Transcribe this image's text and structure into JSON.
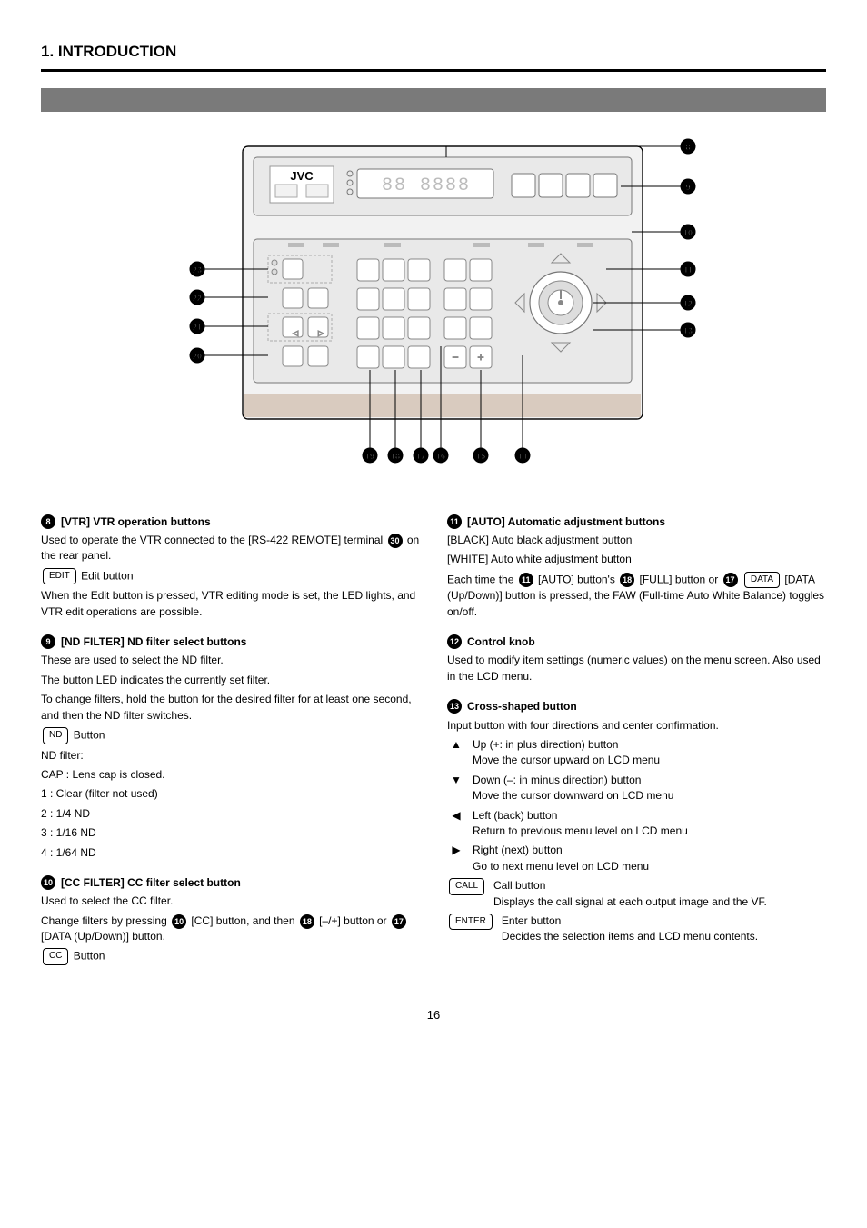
{
  "page": {
    "section": "1. INTRODUCTION",
    "bar_title": "",
    "page_number": "16"
  },
  "diagram": {
    "brand": "JVC",
    "right_callouts": [
      "8",
      "9",
      "10",
      "11",
      "12",
      "13"
    ],
    "left_callouts": [
      "23",
      "22",
      "21",
      "20"
    ],
    "bottom_callouts": [
      "19",
      "18",
      "17",
      "16",
      "15",
      "14"
    ],
    "beige": "#d9cbbf",
    "light": "#f2f2f2",
    "mid": "#cfcfcf",
    "dark": "#8a8a8a",
    "line": "#000"
  },
  "items_left": [
    {
      "num": "8",
      "title": "[VTR] VTR operation buttons",
      "paras": [
        "Used to operate the VTR connected to the [RS-422 REMOTE] terminal ⊕ on the rear panel.",
        "",
        "When the Edit button is pressed, VTR editing mode is set, the LED lights, and VTR edit operations are possible."
      ],
      "btn_after_para": {
        "index": 1,
        "label": "EDIT",
        "text": "Edit button"
      }
    },
    {
      "num": "9",
      "title": "[ND FILTER] ND filter select buttons",
      "paras": [
        "These are used to select the ND filter.",
        "The button LED indicates the currently set filter.",
        "To change filters, hold the button for the desired filter for at least one second, and then the ND filter switches.",
        "",
        "ND filter:",
        "CAP : Lens cap is closed.",
        "1 : Clear (filter not used)",
        "2 : 1/4 ND",
        "3 : 1/16 ND",
        "4 : 1/64 ND"
      ],
      "btn_after_para": {
        "index": 3,
        "label": "ND",
        "text": "Button"
      }
    },
    {
      "num": "10",
      "title": "[CC FILTER] CC filter select button",
      "paras": [
        "Used to select the CC filter.",
        "Change filters by pressing ⑩ [CC] button, and then ⑱ [–/+] button or ⑰ [DATA (Up/Down)] button."
      ],
      "btn_after_para": {
        "index": 1,
        "label": "CC",
        "text": "Button"
      }
    }
  ],
  "items_right": [
    {
      "num": "11",
      "title": "[AUTO] Automatic adjustment buttons",
      "paras": [
        "[BLACK] Auto black adjustment button",
        "[WHITE] Auto white adjustment button",
        "Each time the ⑪ [AUTO] button's ⑱ [FULL] button or ⑰ [DATA (Up/Down)] button is pressed, the FAW (Full-time Auto White Balance) toggles on/off."
      ],
      "btn_after_para": null
    },
    {
      "num": "12",
      "title": "Control knob",
      "paras": [
        "Used to modify item settings (numeric values) on the menu screen. Also used in the LCD menu."
      ],
      "btn_after_para": null
    },
    {
      "num": "13",
      "title": "Cross-shaped button",
      "paras": [
        "Input button with four directions and center confirmation."
      ],
      "btn_after_para": null,
      "sublist": [
        {
          "sym": "▲",
          "text": "Up (+: in plus direction) button\nMove the cursor upward on LCD menu"
        },
        {
          "sym": "▼",
          "text": "Down (–: in minus direction) button\nMove the cursor downward on LCD menu"
        },
        {
          "sym": "◀",
          "text": "Left (back) button\nReturn to previous menu level on LCD menu"
        },
        {
          "sym": "▶",
          "text": "Right (next) button\nGo to next menu level on LCD menu"
        }
      ],
      "sublist_buttons": [
        {
          "label": "CALL",
          "text": "Call button\nDisplays the call signal at each output image and the VF."
        },
        {
          "label": "ENTER",
          "text": "Enter button\nDecides the selection items and LCD menu contents."
        }
      ]
    }
  ]
}
